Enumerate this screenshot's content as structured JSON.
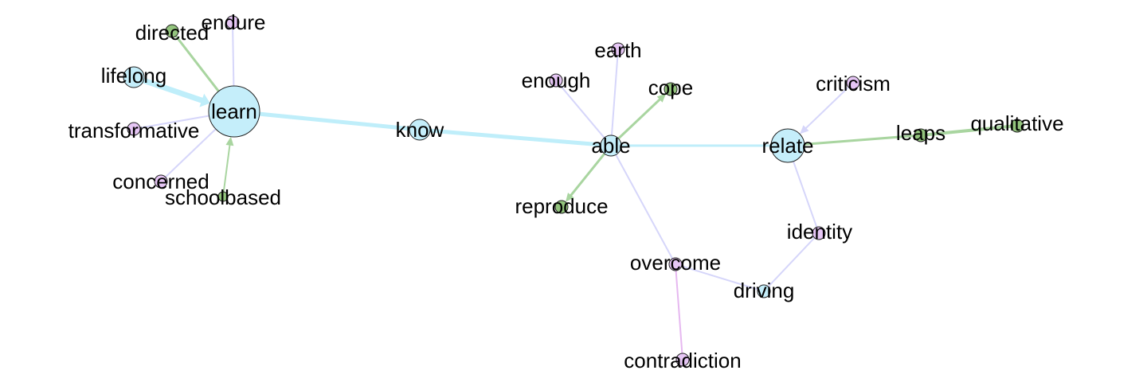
{
  "colors": {
    "blue_node": "#c5eefa",
    "purple_node": "#e6c6f5",
    "green_node": "#93c47d",
    "blue_edge": "#bfeefa",
    "lavender_edge": "#d6d6fa",
    "green_edge": "#a9d5a0",
    "pink_edge": "#e6b8f0"
  },
  "graph": {
    "nodes": [
      {
        "id": "learn",
        "label": "learn",
        "group": "blue",
        "size": "xl"
      },
      {
        "id": "directed",
        "label": "directed",
        "group": "green",
        "size": "s"
      },
      {
        "id": "endure",
        "label": "endure",
        "group": "purple",
        "size": "s"
      },
      {
        "id": "lifelong",
        "label": "lifelong",
        "group": "blue",
        "size": "m"
      },
      {
        "id": "transformative",
        "label": "transformative",
        "group": "purple",
        "size": "s"
      },
      {
        "id": "concerned",
        "label": "concerned",
        "group": "purple",
        "size": "s"
      },
      {
        "id": "schoolbased",
        "label": "schoolbased",
        "group": "green",
        "size": "xs"
      },
      {
        "id": "know",
        "label": "know",
        "group": "blue",
        "size": "m"
      },
      {
        "id": "able",
        "label": "able",
        "group": "blue",
        "size": "m"
      },
      {
        "id": "earth",
        "label": "earth",
        "group": "purple",
        "size": "s"
      },
      {
        "id": "enough",
        "label": "enough",
        "group": "purple",
        "size": "s"
      },
      {
        "id": "cope",
        "label": "cope",
        "group": "green",
        "size": "s"
      },
      {
        "id": "reproduce",
        "label": "reproduce",
        "group": "green",
        "size": "s"
      },
      {
        "id": "relate",
        "label": "relate",
        "group": "blue",
        "size": "l"
      },
      {
        "id": "criticism",
        "label": "criticism",
        "group": "purple",
        "size": "s"
      },
      {
        "id": "leaps",
        "label": "leaps",
        "group": "green",
        "size": "s"
      },
      {
        "id": "qualitative",
        "label": "qualitative",
        "group": "green",
        "size": "s"
      },
      {
        "id": "identity",
        "label": "identity",
        "group": "purple",
        "size": "s"
      },
      {
        "id": "overcome",
        "label": "overcome",
        "group": "purple",
        "size": "s"
      },
      {
        "id": "driving",
        "label": "driving",
        "group": "blue",
        "size": "s"
      },
      {
        "id": "contradiction",
        "label": "contradiction",
        "group": "purple",
        "size": "s"
      }
    ],
    "edges": [
      {
        "from": "lifelong",
        "to": "learn",
        "color": "blue",
        "weight": 7,
        "arrow": true
      },
      {
        "from": "directed",
        "to": "learn",
        "color": "green",
        "weight": 3,
        "arrow": false
      },
      {
        "from": "endure",
        "to": "learn",
        "color": "lavender",
        "weight": 2,
        "arrow": false
      },
      {
        "from": "transformative",
        "to": "learn",
        "color": "lavender",
        "weight": 2,
        "arrow": false
      },
      {
        "from": "concerned",
        "to": "learn",
        "color": "lavender",
        "weight": 2,
        "arrow": false
      },
      {
        "from": "schoolbased",
        "to": "learn",
        "color": "green",
        "weight": 2,
        "arrow": true
      },
      {
        "from": "learn",
        "to": "know",
        "color": "blue",
        "weight": 5,
        "arrow": false
      },
      {
        "from": "know",
        "to": "able",
        "color": "blue",
        "weight": 5,
        "arrow": false
      },
      {
        "from": "earth",
        "to": "able",
        "color": "lavender",
        "weight": 2,
        "arrow": false
      },
      {
        "from": "enough",
        "to": "able",
        "color": "lavender",
        "weight": 2,
        "arrow": false
      },
      {
        "from": "able",
        "to": "cope",
        "color": "green",
        "weight": 3,
        "arrow": true
      },
      {
        "from": "able",
        "to": "reproduce",
        "color": "green",
        "weight": 3,
        "arrow": true
      },
      {
        "from": "able",
        "to": "relate",
        "color": "blue",
        "weight": 3,
        "arrow": false
      },
      {
        "from": "able",
        "to": "overcome",
        "color": "lavender",
        "weight": 2,
        "arrow": false
      },
      {
        "from": "criticism",
        "to": "relate",
        "color": "lavender",
        "weight": 2,
        "arrow": true
      },
      {
        "from": "relate",
        "to": "leaps",
        "color": "green",
        "weight": 3,
        "arrow": false
      },
      {
        "from": "leaps",
        "to": "qualitative",
        "color": "green",
        "weight": 4,
        "arrow": false
      },
      {
        "from": "relate",
        "to": "identity",
        "color": "lavender",
        "weight": 2,
        "arrow": false
      },
      {
        "from": "identity",
        "to": "driving",
        "color": "lavender",
        "weight": 2,
        "arrow": false
      },
      {
        "from": "overcome",
        "to": "driving",
        "color": "lavender",
        "weight": 2,
        "arrow": false
      },
      {
        "from": "overcome",
        "to": "contradiction",
        "color": "pink",
        "weight": 2,
        "arrow": false
      }
    ]
  }
}
